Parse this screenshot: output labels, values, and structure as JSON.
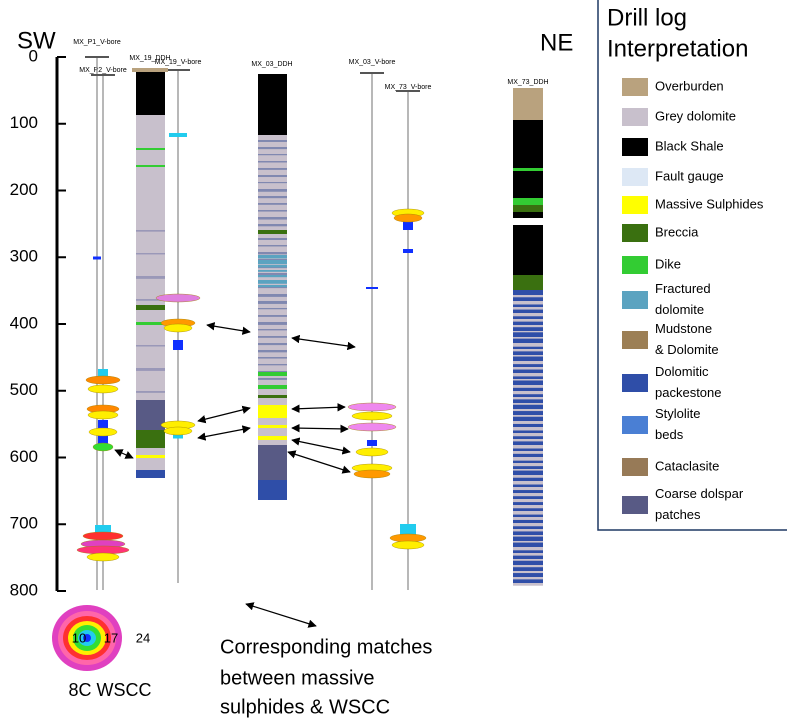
{
  "header": {
    "sw": "SW",
    "ne": "NE"
  },
  "depth_axis": {
    "lim": [
      0,
      800
    ],
    "ticks": [
      0,
      100,
      200,
      300,
      400,
      500,
      600,
      700,
      800
    ]
  },
  "bores": [
    "MX_P1_V-bore",
    "MX_P2_V-bore",
    "MX_19_DDH",
    "MX_19_V-bore",
    "MX_03_DDH",
    "MX_03_V-bore",
    "MX_73_V-bore",
    "MX_73_DDH"
  ],
  "legend": {
    "title_lines": [
      "Drill log",
      "Interpretation"
    ],
    "items": [
      {
        "lines": [
          "Overburden"
        ],
        "color": "#b9a27e"
      },
      {
        "lines": [
          "Grey dolomite"
        ],
        "color": "#c8c0cc"
      },
      {
        "lines": [
          "Black Shale"
        ],
        "color": "#000000"
      },
      {
        "lines": [
          "Fault gauge"
        ],
        "color": "#dde8f5"
      },
      {
        "lines": [
          "Massive Sulphides"
        ],
        "color": "#ffff00"
      },
      {
        "lines": [
          "Breccia"
        ],
        "color": "#3a7010"
      },
      {
        "lines": [
          "Dike"
        ],
        "color": "#33cc33"
      },
      {
        "lines": [
          "Fractured",
          "dolomite"
        ],
        "color": "#5ba3c0"
      },
      {
        "lines": [
          "Mudstone",
          "& Dolomite"
        ],
        "color": "#9c7f55"
      },
      {
        "lines": [
          "Dolomitic",
          "packestone"
        ],
        "color": "#2f4ea8"
      },
      {
        "lines": [
          "Stylolite",
          "beds"
        ],
        "color": "#4a7fd4"
      },
      {
        "lines": [
          "Cataclasite"
        ],
        "color": "#977a57"
      },
      {
        "lines": [
          "Coarse dolspar",
          "patches"
        ],
        "color": "#585a85"
      }
    ]
  },
  "colorbar": {
    "ticks": [
      10,
      17,
      24
    ],
    "caption": "8C WSCC"
  },
  "annotation": {
    "lines": [
      "Corresponding matches",
      "between massive",
      "sulphides & WSCC"
    ]
  }
}
